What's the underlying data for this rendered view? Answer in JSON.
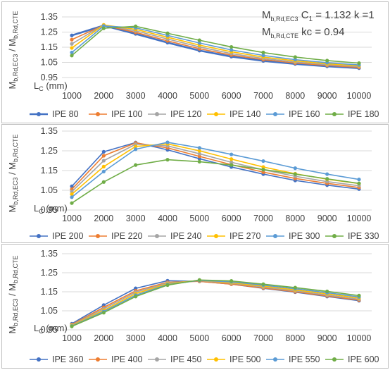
{
  "annotation": {
    "line1_main": "M",
    "line1_sub": "b,Rd,EC3",
    "line1_rest_a": "C",
    "line1_rest_sub": "1",
    "line1_rest_b": " = 1.132 k =1",
    "line2_main": "M",
    "line2_sub": "b,Rd,CTE",
    "line2_rest": "kc = 0.94"
  },
  "colors": [
    "#4472C4",
    "#ED7D31",
    "#A5A5A5",
    "#FFC000",
    "#5B9BD5",
    "#70AD47"
  ],
  "chart_data": [
    {
      "type": "line",
      "ylabel": {
        "a": "M",
        "a_sub": "b,Rd,EC3",
        "mid": " / M",
        "b_sub": "b,Rd,CTE"
      },
      "xlabel": {
        "main": "L",
        "sub": "C",
        "rest": " (mm)"
      },
      "ylim": [
        0.95,
        1.35
      ],
      "yticks": [
        "0.95",
        "1.05",
        "1.15",
        "1.25",
        "1.35"
      ],
      "ytick_values": [
        0.95,
        1.05,
        1.15,
        1.25,
        1.35
      ],
      "grid": true,
      "legend_position": "bottom",
      "x": [
        "1000",
        "2000",
        "3000",
        "4000",
        "5000",
        "6000",
        "7000",
        "8000",
        "9000",
        "10000"
      ],
      "series": [
        {
          "name": "IPE 80",
          "values": [
            1.228,
            1.293,
            1.238,
            1.18,
            1.128,
            1.088,
            1.06,
            1.04,
            1.024,
            1.012
          ]
        },
        {
          "name": "IPE 100",
          "values": [
            1.2,
            1.295,
            1.248,
            1.192,
            1.14,
            1.098,
            1.068,
            1.046,
            1.03,
            1.017
          ]
        },
        {
          "name": "IPE 120",
          "values": [
            1.172,
            1.297,
            1.258,
            1.204,
            1.152,
            1.108,
            1.076,
            1.052,
            1.035,
            1.022
          ]
        },
        {
          "name": "IPE 140",
          "values": [
            1.145,
            1.297,
            1.268,
            1.216,
            1.164,
            1.12,
            1.085,
            1.06,
            1.041,
            1.027
          ]
        },
        {
          "name": "IPE 160",
          "values": [
            1.115,
            1.29,
            1.278,
            1.228,
            1.178,
            1.132,
            1.096,
            1.068,
            1.048,
            1.033
          ]
        },
        {
          "name": "IPE 180",
          "values": [
            1.095,
            1.275,
            1.288,
            1.242,
            1.196,
            1.152,
            1.115,
            1.085,
            1.062,
            1.045
          ]
        }
      ]
    },
    {
      "type": "line",
      "ylabel": {
        "a": "M",
        "a_sub": "b,Rd,EC3",
        "mid": " / M",
        "b_sub": "b,Rd,CTE"
      },
      "xlabel": {
        "main": "L",
        "sub": "C",
        "rest": " (mm)"
      },
      "ylim": [
        0.95,
        1.35
      ],
      "yticks": [
        "0.95",
        "1.05",
        "1.15",
        "1.25",
        "1.35"
      ],
      "ytick_values": [
        0.95,
        1.05,
        1.15,
        1.25,
        1.35
      ],
      "grid": true,
      "legend_position": "bottom",
      "x": [
        "1000",
        "2000",
        "3000",
        "4000",
        "5000",
        "6000",
        "7000",
        "8000",
        "9000",
        "10000"
      ],
      "series": [
        {
          "name": "IPE 200",
          "values": [
            1.07,
            1.245,
            1.292,
            1.255,
            1.21,
            1.168,
            1.132,
            1.1,
            1.076,
            1.056
          ]
        },
        {
          "name": "IPE 220",
          "values": [
            1.055,
            1.225,
            1.29,
            1.265,
            1.222,
            1.18,
            1.142,
            1.11,
            1.085,
            1.064
          ]
        },
        {
          "name": "IPE 240",
          "values": [
            1.043,
            1.2,
            1.283,
            1.275,
            1.235,
            1.192,
            1.154,
            1.121,
            1.094,
            1.073
          ]
        },
        {
          "name": "IPE 270",
          "values": [
            1.03,
            1.17,
            1.272,
            1.285,
            1.25,
            1.208,
            1.168,
            1.134,
            1.106,
            1.084
          ]
        },
        {
          "name": "IPE 300",
          "values": [
            1.015,
            1.145,
            1.258,
            1.293,
            1.265,
            1.232,
            1.198,
            1.162,
            1.132,
            1.105
          ]
        },
        {
          "name": "IPE 330",
          "values": [
            0.985,
            1.092,
            1.178,
            1.205,
            1.195,
            1.178,
            1.155,
            1.132,
            1.108,
            1.085
          ]
        }
      ]
    },
    {
      "type": "line",
      "ylabel": {
        "a": "M",
        "a_sub": "b,Rd,EC3",
        "mid": " / M",
        "b_sub": "b,Rd,CTE"
      },
      "xlabel": {
        "main": "L",
        "sub": "C",
        "rest": " (mm)"
      },
      "ylim": [
        0.95,
        1.35
      ],
      "yticks": [
        "0.95",
        "1.05",
        "1.15",
        "1.25",
        "1.35"
      ],
      "ytick_values": [
        0.95,
        1.05,
        1.15,
        1.25,
        1.35
      ],
      "grid": true,
      "legend_position": "bottom",
      "x": [
        "1000",
        "2000",
        "3000",
        "4000",
        "5000",
        "6000",
        "7000",
        "8000",
        "9000",
        "10000"
      ],
      "series": [
        {
          "name": "IPE 360",
          "values": [
            0.982,
            1.08,
            1.168,
            1.208,
            1.205,
            1.19,
            1.168,
            1.148,
            1.125,
            1.103
          ]
        },
        {
          "name": "IPE 400",
          "values": [
            0.978,
            1.068,
            1.155,
            1.2,
            1.205,
            1.19,
            1.17,
            1.15,
            1.128,
            1.106
          ]
        },
        {
          "name": "IPE 450",
          "values": [
            0.975,
            1.06,
            1.148,
            1.196,
            1.208,
            1.195,
            1.175,
            1.155,
            1.133,
            1.111
          ]
        },
        {
          "name": "IPE 500",
          "values": [
            0.973,
            1.052,
            1.14,
            1.192,
            1.21,
            1.198,
            1.18,
            1.16,
            1.139,
            1.117
          ]
        },
        {
          "name": "IPE 550",
          "values": [
            0.97,
            1.046,
            1.132,
            1.188,
            1.21,
            1.202,
            1.185,
            1.166,
            1.145,
            1.123
          ]
        },
        {
          "name": "IPE 600",
          "values": [
            0.968,
            1.04,
            1.125,
            1.185,
            1.212,
            1.207,
            1.19,
            1.172,
            1.152,
            1.13
          ]
        }
      ]
    }
  ]
}
